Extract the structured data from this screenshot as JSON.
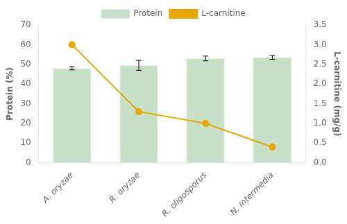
{
  "chart_data": {
    "type": "bar",
    "categories": [
      "A. oryzae",
      "R. oryzae",
      "R. oligosporus",
      "N. intermedia"
    ],
    "series": [
      {
        "name": "Protein",
        "type": "bar",
        "color": "#c8dfc8",
        "values": [
          48.0,
          49.5,
          53.0,
          53.5
        ],
        "errors": [
          0.8,
          2.5,
          1.2,
          1.0
        ]
      },
      {
        "name": "L-carnitine",
        "type": "line",
        "color": "#e6a800",
        "marker": "circle",
        "line_style": "solid",
        "axis": "y2",
        "values": [
          3.0,
          1.3,
          1.0,
          0.4
        ]
      }
    ],
    "ylabel": "Protein (%)",
    "y2label": "L-carnitine (mg/g)",
    "ylim": [
      0,
      70
    ],
    "yticks": [
      0,
      10,
      20,
      30,
      40,
      50,
      60,
      70
    ],
    "y2lim": [
      0,
      3.5
    ],
    "y2ticks": [
      {
        "value": 0,
        "label": "0.0"
      },
      0.5,
      {
        "value": 1,
        "label": "1.0"
      },
      1.5,
      {
        "value": 2,
        "label": "2.0"
      },
      2.5,
      {
        "value": 3,
        "label": "3.0"
      },
      3.5
    ],
    "legend": "upper center",
    "grid": false
  }
}
